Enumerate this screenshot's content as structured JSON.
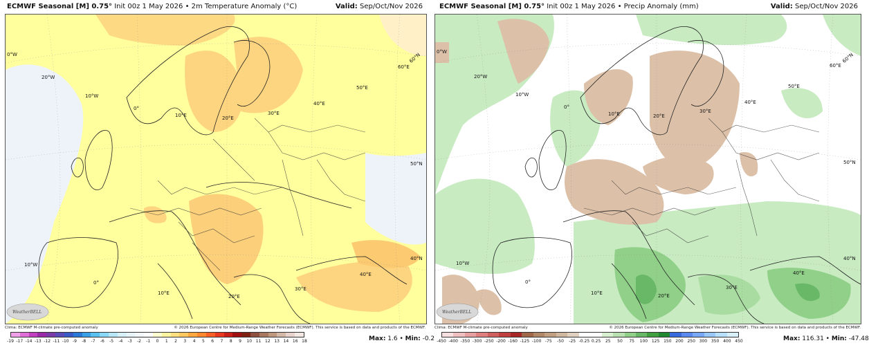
{
  "left": {
    "title_bold": "ECMWF Seasonal [M] 0.75°",
    "title_rest": " Init 00z 1 May 2026 • 2m Temperature Anomaly (°C)",
    "valid_label": "Valid:",
    "valid_value": " Sep/Oct/Nov 2026",
    "footer_left": "Clima: ECMWF M-climate pre-computed anomaly",
    "footer_right": "© 2026 European Centre for Medium-Range Weather Forecasts (ECMWF). This service is based on data and products of the ECMWF.",
    "max_label": "Max:",
    "max_value": " 1.6",
    "min_label": "Min:",
    "min_value": " -0.2",
    "logo": "WeatherBELL",
    "colorbar": {
      "ticks": [
        "-19",
        "-17",
        "-14",
        "-13",
        "-12",
        "-11",
        "-10",
        "-9",
        "-8",
        "-7",
        "-6",
        "-5",
        "-4",
        "-3",
        "-2",
        "-1",
        "0",
        "1",
        "2",
        "3",
        "4",
        "5",
        "6",
        "7",
        "8",
        "9",
        "10",
        "11",
        "12",
        "13",
        "14",
        "16",
        "18"
      ],
      "colors": [
        "#f0a0e8",
        "#e070d8",
        "#c040c0",
        "#9a2aa8",
        "#7a3aa8",
        "#5a4ab8",
        "#3a5ac8",
        "#2a78d8",
        "#3aa0e8",
        "#5ac0f0",
        "#8ad8f8",
        "#b8e8f8",
        "#d8f0f8",
        "#e8f4f8",
        "#f4f8fa",
        "#ffffff",
        "#ffffd0",
        "#fff4a0",
        "#ffe080",
        "#ffc860",
        "#ffa840",
        "#ff8830",
        "#f86028",
        "#e83820",
        "#c82018",
        "#a01010",
        "#802010",
        "#905040",
        "#a87860",
        "#c09880",
        "#d4b8a8",
        "#e8d4cc",
        "#f4e8e4"
      ]
    },
    "map_labels": [
      "0°W",
      "20°W",
      "10°W",
      "0°",
      "10°E",
      "20°E",
      "30°E",
      "40°E",
      "50°E",
      "60°E",
      "60°N",
      "50°N",
      "40°N",
      "10°W",
      "0°",
      "10°E",
      "20°E",
      "30°E",
      "40°E"
    ]
  },
  "right": {
    "title_bold": "ECMWF Seasonal [M] 0.75°",
    "title_rest": " Init 00z 1 May 2026 • Precip Anomaly (mm)",
    "valid_label": "Valid:",
    "valid_value": " Sep/Oct/Nov 2026",
    "footer_left": "Clima: ECMWF M-climate pre-computed anomaly",
    "footer_right": "© 2026 European Centre for Medium-Range Weather Forecasts (ECMWF). This service is based on data and products of the ECMWF.",
    "max_label": "Max:",
    "max_value": " 116.31",
    "min_label": "Min:",
    "min_value": " -47.48",
    "logo": "WeatherBELL",
    "colorbar": {
      "ticks": [
        "-450",
        "-400",
        "-350",
        "-300",
        "-250",
        "-200",
        "-160",
        "-125",
        "-100",
        "-75",
        "-50",
        "-25",
        "-0.25",
        "0.25",
        "25",
        "50",
        "75",
        "100",
        "125",
        "150",
        "200",
        "250",
        "300",
        "350",
        "400",
        "450"
      ],
      "colors": [
        "#f8e0e0",
        "#f0c0c0",
        "#e8a0a0",
        "#e08080",
        "#d06060",
        "#c04040",
        "#a82828",
        "#a06848",
        "#b08868",
        "#c0a080",
        "#d0b8a0",
        "#e0d0c0",
        "#ffffff",
        "#ffffff",
        "#d8f0d0",
        "#b8e0b0",
        "#90d088",
        "#68b868",
        "#40a040",
        "#208830",
        "#3a6ae0",
        "#5a8af0",
        "#7aa8f8",
        "#9ac8f8",
        "#b8e0fa",
        "#d8f0fc"
      ]
    },
    "map_labels": [
      "0°W",
      "20°W",
      "10°W",
      "0°",
      "10°E",
      "20°E",
      "30°E",
      "40°E",
      "50°E",
      "60°E",
      "60°N",
      "50°N",
      "40°N",
      "10°W",
      "0°",
      "10°E",
      "20°E",
      "30°E",
      "40°E"
    ]
  }
}
